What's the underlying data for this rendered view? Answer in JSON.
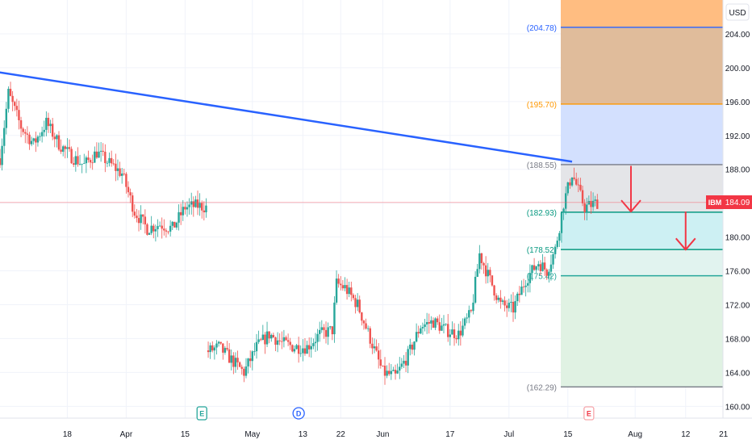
{
  "symbol": "IBM",
  "currency": "USD",
  "last_price": "184.09",
  "colors": {
    "up": "#26a69a",
    "down": "#ef5350",
    "trendline": "#2962ff",
    "arrow": "#f23645",
    "price_line": "#f7525f"
  },
  "chart_data": {
    "type": "candlestick",
    "ylim": [
      158.6,
      208.0
    ],
    "y_ticks": [
      160,
      164,
      168,
      172,
      176,
      180,
      184,
      188,
      192,
      196,
      200,
      204
    ],
    "y_tick_labels": [
      "160.00",
      "164.00",
      "168.00",
      "172.00",
      "176.00",
      "180.00",
      "184.00",
      "188.00",
      "192.00",
      "196.00",
      "200.00",
      "204.00"
    ],
    "x_range_days": [
      -16,
      120
    ],
    "x_tick_labels": [
      {
        "label": "18",
        "day": 0
      },
      {
        "label": "Apr",
        "day": 14
      },
      {
        "label": "15",
        "day": 28
      },
      {
        "label": "May",
        "day": 44
      },
      {
        "label": "13",
        "day": 56
      },
      {
        "label": "22",
        "day": 65
      },
      {
        "label": "Jun",
        "day": 75
      },
      {
        "label": "17",
        "day": 91
      },
      {
        "label": "Jul",
        "day": 105
      },
      {
        "label": "15",
        "day": 119
      },
      {
        "label": "Aug",
        "day": 135
      },
      {
        "label": "12",
        "day": 147
      },
      {
        "label": "21",
        "day": 156
      }
    ],
    "fib_levels": [
      {
        "value": 204.78,
        "label": "(204.78)",
        "color": "#2962ff"
      },
      {
        "value": 195.7,
        "label": "(195.70)",
        "color": "#ff9800"
      },
      {
        "value": 188.55,
        "label": "(188.55)",
        "color": "#787b86"
      },
      {
        "value": 182.93,
        "label": "(182.93)",
        "color": "#089981"
      },
      {
        "value": 178.52,
        "label": "(178.52)",
        "color": "#089981"
      },
      {
        "value": 175.42,
        "label": "(175.42)",
        "color": "#26a69a"
      },
      {
        "value": 162.29,
        "label": "(162.29)",
        "color": "#787b86"
      }
    ],
    "fib_zones": [
      {
        "from": 204.78,
        "to": 208.0,
        "color": "#ffb97a",
        "opacity": 0.95
      },
      {
        "from": 195.7,
        "to": 204.78,
        "color": "#deb896",
        "opacity": 0.95
      },
      {
        "from": 188.55,
        "to": 195.7,
        "color": "#d3e0fe",
        "opacity": 1
      },
      {
        "from": 182.93,
        "to": 188.55,
        "color": "#e4e5e8",
        "opacity": 1
      },
      {
        "from": 178.52,
        "to": 182.93,
        "color": "#cdf0f3",
        "opacity": 1
      },
      {
        "from": 175.42,
        "to": 178.52,
        "color": "#e1f3ef",
        "opacity": 1
      },
      {
        "from": 162.29,
        "to": 175.42,
        "color": "#e0f2e3",
        "opacity": 1
      }
    ],
    "trendline": {
      "start": {
        "day": -18,
        "price": 199.6
      },
      "end": {
        "day": 120,
        "price": 188.9
      }
    },
    "arrows": [
      {
        "day": 134,
        "from": 188.4,
        "to": 183.0
      },
      {
        "day": 147,
        "from": 183.0,
        "to": 178.5
      }
    ],
    "event_markers": [
      {
        "label": "E",
        "day": 32,
        "style": "earnings"
      },
      {
        "label": "D",
        "day": 55,
        "style": "dividend"
      },
      {
        "label": "E",
        "day": 124,
        "style": "earnings-future"
      }
    ],
    "price_path_days": [
      -16,
      -14,
      -11,
      -8,
      -5,
      -2,
      1,
      4,
      7,
      10,
      13,
      16,
      19,
      22,
      25,
      28,
      31,
      33,
      33.5,
      36,
      39,
      42,
      45,
      48,
      51,
      54,
      57,
      60,
      63,
      64,
      66,
      69,
      72,
      75,
      78,
      81,
      84,
      87,
      90,
      93,
      96,
      98,
      100,
      103,
      106,
      109,
      112,
      114,
      116,
      118,
      120,
      123,
      126
    ],
    "price_path": [
      189.3,
      197.0,
      193.0,
      191.0,
      193.5,
      191.0,
      189.5,
      188.5,
      190.0,
      188.7,
      187.5,
      183.0,
      181.0,
      181.5,
      181.0,
      183.5,
      183.7,
      183.5,
      166.5,
      167.0,
      165.5,
      164.0,
      167.0,
      168.5,
      167.5,
      167.0,
      167.0,
      168.5,
      169.0,
      174.5,
      174.0,
      172.0,
      168.0,
      164.0,
      163.5,
      166.0,
      169.5,
      170.0,
      169.0,
      168.5,
      171.0,
      178.0,
      175.5,
      172.0,
      171.5,
      175.0,
      177.0,
      176.0,
      178.5,
      184.0,
      187.5,
      183.5,
      184.09
    ]
  }
}
